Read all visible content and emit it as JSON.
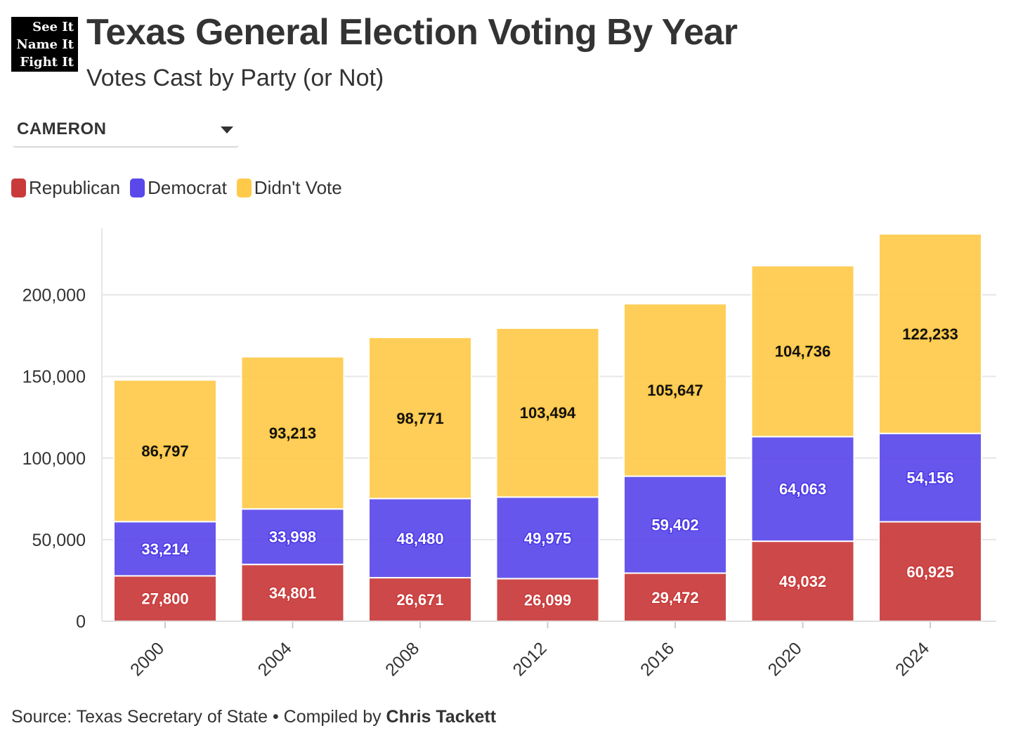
{
  "logo": {
    "line1": "See It",
    "line2": "Name It",
    "line3": "Fight It"
  },
  "header": {
    "title": "Texas General Election Voting By Year",
    "subtitle": "Votes Cast by Party (or Not)"
  },
  "county_select": {
    "value": "CAMERON"
  },
  "colors": {
    "republican": "#c93a3a",
    "democrat": "#5a48ea",
    "didnt_vote": "#ffca4a"
  },
  "footer": {
    "source_text": "Source: Texas Secretary of State • Compiled by ",
    "author": "Chris Tackett"
  },
  "chart_data": {
    "type": "bar",
    "stacked": true,
    "categories": [
      "2000",
      "2004",
      "2008",
      "2012",
      "2016",
      "2020",
      "2024"
    ],
    "series": [
      {
        "name": "Republican",
        "values": [
          27800,
          34801,
          26671,
          26099,
          29472,
          49032,
          60925
        ]
      },
      {
        "name": "Democrat",
        "values": [
          33214,
          33998,
          48480,
          49975,
          59402,
          64063,
          54156
        ]
      },
      {
        "name": "Didn't Vote",
        "values": [
          86797,
          93213,
          98771,
          103494,
          105647,
          104736,
          122233
        ]
      }
    ],
    "data_labels": [
      [
        "27,800",
        "34,801",
        "26,671",
        "26,099",
        "29,472",
        "49,032",
        "60,925"
      ],
      [
        "33,214",
        "33,998",
        "48,480",
        "49,975",
        "59,402",
        "64,063",
        "54,156"
      ],
      [
        "86,797",
        "93,213",
        "98,771",
        "103,494",
        "105,647",
        "104,736",
        "122,233"
      ]
    ],
    "yticks": [
      0,
      50000,
      100000,
      150000,
      200000
    ],
    "ytick_labels": [
      "0",
      "50,000",
      "100,000",
      "150,000",
      "200,000"
    ],
    "ylim": [
      0,
      240000
    ],
    "grid": true,
    "legend_position": "top-left"
  }
}
